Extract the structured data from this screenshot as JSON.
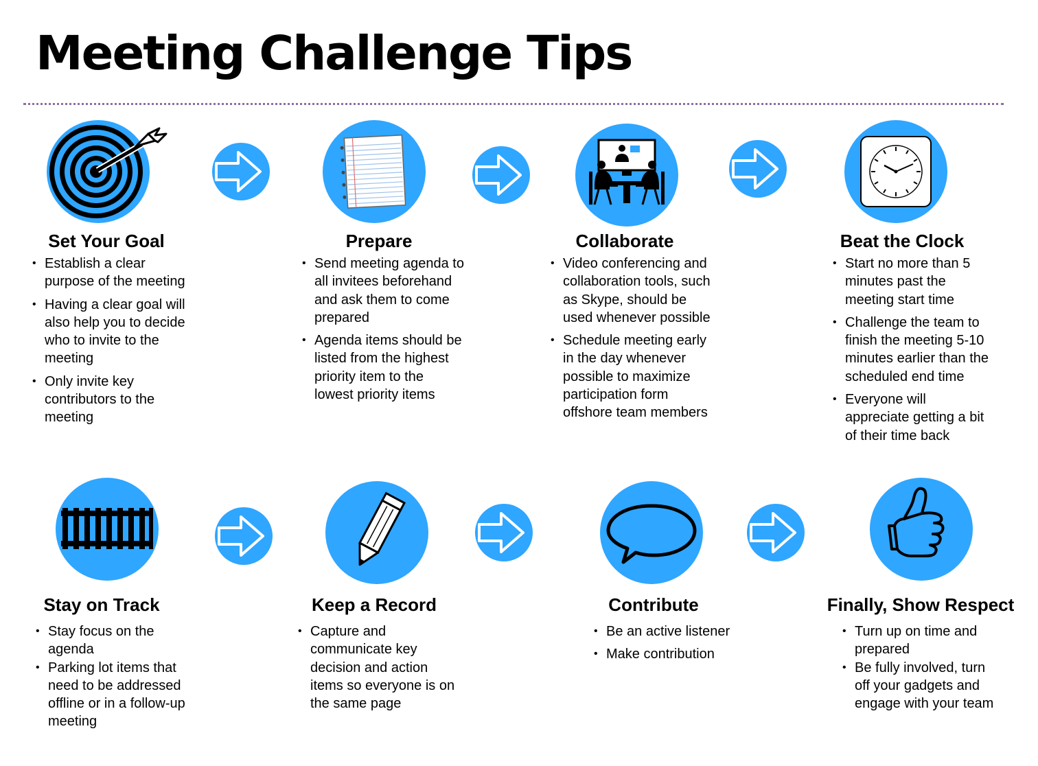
{
  "title": "Meeting Challenge Tips",
  "colors": {
    "accent": "#2fa6ff",
    "divider": "#8c6fa3"
  },
  "steps": [
    {
      "icon": "target-icon",
      "title": "Set Your Goal",
      "bullets": [
        "Establish a clear purpose of the meeting",
        "Having a clear goal will also help you to decide who to invite to the meeting",
        "Only invite key contributors to the meeting"
      ]
    },
    {
      "icon": "notepad-icon",
      "title": "Prepare",
      "bullets": [
        "Send meeting agenda to all invitees beforehand and ask them to come prepared",
        "Agenda items should be listed from the highest priority item to the lowest priority items"
      ]
    },
    {
      "icon": "video-conference-icon",
      "title": "Collaborate",
      "bullets": [
        "Video conferencing and collaboration tools, such as Skype, should be used whenever possible",
        "Schedule meeting early in the day whenever possible to maximize participation form offshore team members"
      ]
    },
    {
      "icon": "clock-icon",
      "title": "Beat the Clock",
      "bullets": [
        "Start no more than 5 minutes past the meeting start time",
        "Challenge the team to finish the meeting 5-10 minutes earlier than the scheduled end time",
        "Everyone will appreciate getting a bit of their time back"
      ]
    },
    {
      "icon": "railroad-track-icon",
      "title": "Stay on Track",
      "bullets": [
        "Stay focus on the agenda",
        "Parking lot items that need to be addressed offline or in a follow-up meeting"
      ]
    },
    {
      "icon": "pencil-icon",
      "title": "Keep a Record",
      "bullets": [
        "Capture and communicate key decision and action items so everyone is on the same page"
      ]
    },
    {
      "icon": "speech-bubble-icon",
      "title": "Contribute",
      "bullets": [
        "Be an active listener",
        "Make contribution"
      ]
    },
    {
      "icon": "thumbs-up-icon",
      "title": "Finally, Show Respect",
      "bullets": [
        "Turn up on time and prepared",
        "Be fully involved, turn off your gadgets and engage with your team"
      ]
    }
  ]
}
